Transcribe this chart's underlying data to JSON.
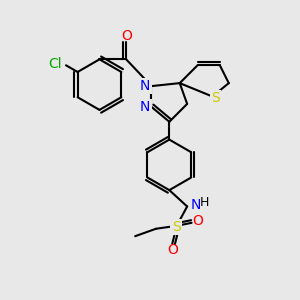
{
  "background_color": "#e8e8e8",
  "bond_color": "#000000",
  "line_width": 1.5,
  "atom_colors": {
    "C": "#000000",
    "N": "#0000ff",
    "O": "#ff0000",
    "S": "#cccc00",
    "Cl": "#00aa00",
    "H": "#000000"
  },
  "font_size": 9,
  "fig_size": [
    3.0,
    3.0
  ],
  "dpi": 100
}
